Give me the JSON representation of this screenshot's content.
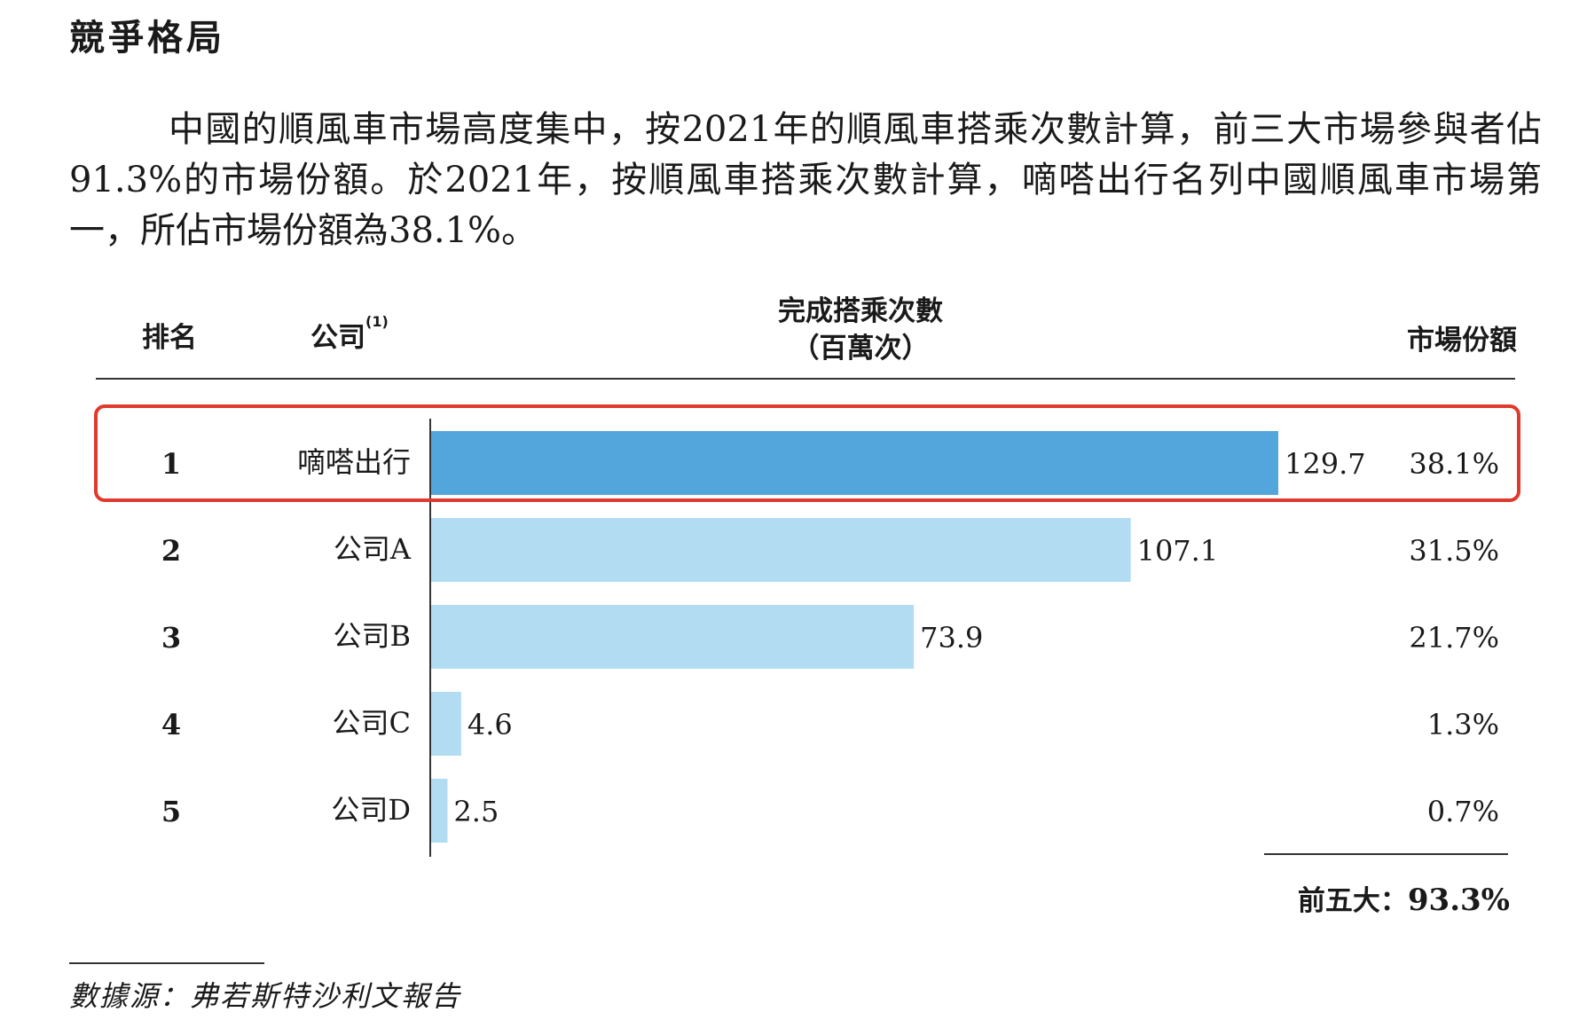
{
  "section_title": "競爭格局",
  "intro_text": "中國的順風車市場高度集中，按2021年的順風車搭乘次數計算，前三大市場參與者佔91.3%的市場份額。於2021年，按順風車搭乘次數計算，嘀嗒出行名列中國順風車市場第一，所佔市場份額為38.1%。",
  "table_headers": {
    "rank": "排名",
    "company": "公司",
    "company_note": "(1)",
    "rides_line1": "完成搭乘次數",
    "rides_line2": "（百萬次）",
    "share": "市場份額"
  },
  "colors": {
    "highlight_bar": "#53a6dc",
    "other_bar": "#b1dcf1",
    "highlight_border": "#e0392d"
  },
  "chart_data": {
    "type": "bar",
    "orientation": "horizontal",
    "categories": [
      "嘀嗒出行",
      "公司A",
      "公司B",
      "公司C",
      "公司D"
    ],
    "ranks": [
      "1",
      "2",
      "3",
      "4",
      "5"
    ],
    "values": [
      129.7,
      107.1,
      73.9,
      4.6,
      2.5
    ],
    "value_labels": [
      "129.7",
      "107.1",
      "73.9",
      "4.6",
      "2.5"
    ],
    "shares": [
      "38.1%",
      "31.5%",
      "21.7%",
      "1.3%",
      "0.7%"
    ],
    "highlighted_index": 0
  },
  "total": {
    "label": "前五大：",
    "value": "93.3%"
  },
  "source": "數據源：弗若斯特沙利文報告"
}
